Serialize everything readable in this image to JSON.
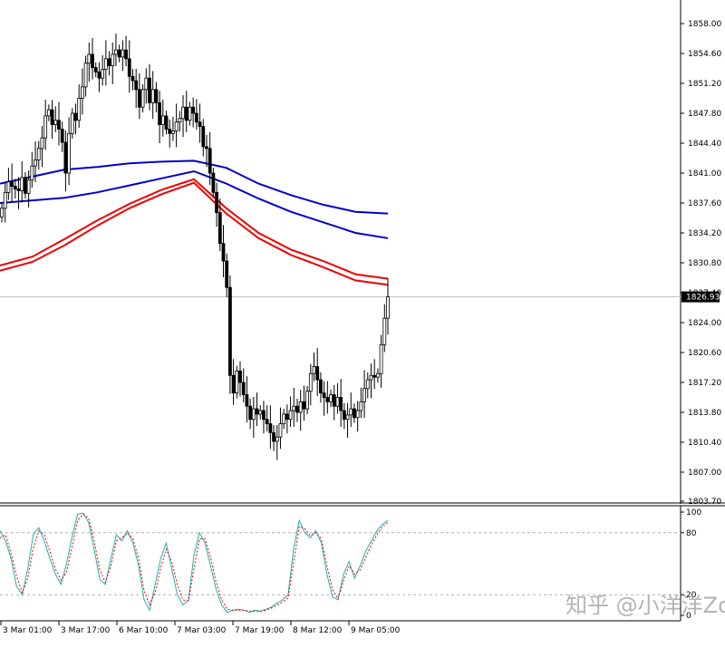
{
  "watermark": "知乎 @小洋洋Zoe",
  "chart_data": [
    {
      "type": "candlestick",
      "title": "",
      "ylim": [
        1803.7,
        1859.9
      ],
      "y_ticks": [
        "1858.00",
        "1854.60",
        "1851.20",
        "1847.80",
        "1844.40",
        "1841.00",
        "1837.60",
        "1834.20",
        "1830.80",
        "1827.40",
        "1824.00",
        "1820.60",
        "1817.20",
        "1813.80",
        "1810.40",
        "1807.00",
        "1803.70"
      ],
      "current_price": "1826.93",
      "x_ticks": [
        "3 Mar 01:00",
        "3 Mar 17:00",
        "6 Mar 10:00",
        "7 Mar 03:00",
        "7 Mar 19:00",
        "8 Mar 12:00",
        "9 Mar 05:00"
      ],
      "grid": false,
      "candles_close": [
        1837,
        1838.8,
        1840,
        1839.5,
        1839.2,
        1839,
        1840.5,
        1838.7,
        1840.2,
        1841.8,
        1842.5,
        1843.8,
        1845,
        1847.5,
        1848.2,
        1846.5,
        1847,
        1846,
        1844.5,
        1841,
        1845.5,
        1847.8,
        1847,
        1849.5,
        1850.8,
        1853.5,
        1854.5,
        1853,
        1852.5,
        1851.8,
        1852.8,
        1854,
        1853.2,
        1854.5,
        1855,
        1854.2,
        1855,
        1854,
        1852,
        1851.5,
        1850.5,
        1848.5,
        1850.5,
        1851.8,
        1849,
        1850.5,
        1849,
        1846.5,
        1847.5,
        1846,
        1845.5,
        1845.8,
        1846.8,
        1847.2,
        1848.5,
        1847,
        1848.5,
        1847.8,
        1846.8,
        1846.3,
        1844,
        1843.8,
        1841,
        1838.8,
        1836.5,
        1833,
        1831,
        1828,
        1818,
        1816,
        1818.5,
        1817.2,
        1815.8,
        1814.5,
        1813,
        1814.2,
        1813.6,
        1814,
        1813,
        1812.5,
        1811.5,
        1810.5,
        1811,
        1812.5,
        1813.6,
        1813,
        1814,
        1814.5,
        1813.8,
        1815,
        1814.2,
        1816.2,
        1818.2,
        1819,
        1817.5,
        1816,
        1815.5,
        1815,
        1815.8,
        1814.5,
        1815.5,
        1814,
        1813,
        1813.5,
        1814.2,
        1813.2,
        1814,
        1815,
        1816.5,
        1817.5,
        1818,
        1817.8,
        1818.2,
        1821.5,
        1824.5,
        1826.93
      ],
      "ma_series": [
        {
          "color": "#0000cc",
          "values": [
            1839.8,
            1840.6,
            1841.4,
            1841.7,
            1842.1,
            1842.3,
            1842.4,
            1841.6,
            1839.8,
            1838.5,
            1837.4,
            1836.6,
            1836.4
          ]
        },
        {
          "color": "#0000cc",
          "values": [
            1837.6,
            1837.9,
            1838.2,
            1838.8,
            1839.6,
            1840.4,
            1841.2,
            1839.8,
            1838.1,
            1836.6,
            1835.4,
            1834.2,
            1833.6
          ]
        },
        {
          "color": "#ee0000",
          "values": [
            1830.5,
            1831.5,
            1833.5,
            1835.6,
            1837.5,
            1839.1,
            1840.3,
            1837.0,
            1834.2,
            1832.3,
            1831.0,
            1829.5,
            1829.0
          ]
        },
        {
          "color": "#ee0000",
          "values": [
            1829.9,
            1830.9,
            1832.8,
            1835.0,
            1837.0,
            1838.6,
            1839.9,
            1836.4,
            1833.6,
            1831.7,
            1830.3,
            1828.8,
            1828.3
          ]
        }
      ]
    },
    {
      "type": "line",
      "title": "",
      "ylim": [
        0,
        100
      ],
      "y_ticks": [
        "100",
        "80",
        "20",
        "0"
      ],
      "levels": [
        80,
        20
      ],
      "series": [
        {
          "color": "#20b0b0",
          "values": [
            82,
            72,
            55,
            28,
            20,
            45,
            78,
            85,
            72,
            55,
            40,
            30,
            50,
            76,
            98,
            99,
            90,
            64,
            35,
            30,
            55,
            78,
            72,
            82,
            70,
            48,
            15,
            5,
            30,
            55,
            70,
            45,
            20,
            10,
            15,
            58,
            80,
            70,
            48,
            25,
            10,
            3,
            5,
            6,
            5,
            3,
            5,
            4,
            6,
            8,
            12,
            15,
            20,
            65,
            92,
            80,
            75,
            82,
            70,
            40,
            18,
            15,
            40,
            52,
            36,
            48,
            62,
            72,
            82,
            88,
            92
          ]
        },
        {
          "color": "#ee0000",
          "dashed": true,
          "values": [
            75,
            78,
            60,
            38,
            22,
            36,
            65,
            82,
            78,
            62,
            45,
            34,
            42,
            66,
            92,
            98,
            94,
            72,
            44,
            32,
            48,
            72,
            75,
            80,
            74,
            55,
            24,
            10,
            22,
            46,
            64,
            52,
            30,
            15,
            14,
            45,
            74,
            74,
            56,
            32,
            15,
            6,
            5,
            5,
            5,
            4,
            4,
            4,
            5,
            7,
            10,
            13,
            17,
            52,
            86,
            84,
            77,
            80,
            74,
            48,
            25,
            16,
            34,
            48,
            40,
            44,
            56,
            68,
            78,
            86,
            90
          ]
        }
      ]
    }
  ]
}
